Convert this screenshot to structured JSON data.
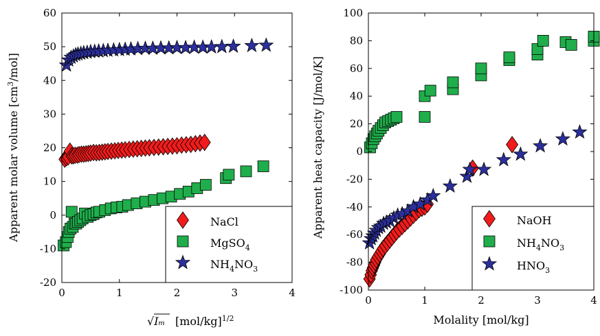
{
  "colors": {
    "red": "#f01c1c",
    "green": "#1fae4b",
    "blue": "#2b2f9b",
    "edge": "#000000"
  },
  "chart_data": [
    {
      "type": "scatter",
      "xlabel_math": "√Iₘ",
      "xlabel": "[mol/kg]",
      "xlabel_exp": "1/2",
      "ylabel_pre": "Apparent molar volume [cm",
      "ylabel_exp": "3",
      "ylabel_post": "/mol]",
      "xlim": [
        0,
        4
      ],
      "ylim": [
        -20,
        60
      ],
      "xticks": [
        "0",
        "1",
        "2",
        "3",
        "4"
      ],
      "yticks": [
        "-20",
        "-10",
        "0",
        "10",
        "20",
        "30",
        "40",
        "50",
        "60"
      ],
      "legend_position": "bottom-right",
      "series": [
        {
          "name": "NaCl",
          "legend_base": "NaCl",
          "legend_sub": "",
          "legend_tail": "",
          "marker": "diamond",
          "color": "red",
          "x": [
            0.05,
            0.08,
            0.11,
            0.14,
            0.17,
            0.2,
            0.23,
            0.27,
            0.3,
            0.34,
            0.38,
            0.42,
            0.46,
            0.5,
            0.55,
            0.6,
            0.65,
            0.7,
            0.75,
            0.8,
            0.86,
            0.92,
            0.98,
            1.04,
            1.1,
            1.17,
            1.24,
            1.31,
            1.38,
            1.45,
            1.52,
            1.6,
            1.68,
            1.76,
            1.84,
            1.92,
            2.0,
            2.08,
            2.16,
            2.24,
            2.32,
            2.4,
            2.48
          ],
          "y": [
            16.6,
            17.0,
            17.3,
            19.0,
            17.6,
            17.6,
            17.8,
            17.8,
            18.0,
            18.1,
            18.1,
            18.2,
            18.3,
            18.4,
            18.6,
            18.5,
            18.6,
            18.7,
            18.8,
            18.9,
            19.0,
            19.1,
            19.2,
            19.3,
            19.4,
            19.5,
            19.6,
            19.7,
            19.8,
            19.9,
            20.0,
            20.1,
            20.2,
            20.3,
            20.4,
            20.5,
            20.6,
            20.8,
            20.9,
            21.0,
            21.2,
            21.4,
            21.6
          ]
        },
        {
          "name": "MgSO4",
          "legend_base": "MgSO",
          "legend_sub": "4",
          "legend_tail": "",
          "marker": "square",
          "color": "green",
          "x": [
            0.03,
            0.07,
            0.1,
            0.12,
            0.15,
            0.17,
            0.19,
            0.22,
            0.25,
            0.28,
            0.32,
            0.36,
            0.4,
            0.45,
            0.5,
            0.55,
            0.6,
            0.65,
            0.75,
            0.85,
            0.95,
            1.05,
            1.15,
            1.3,
            1.45,
            1.6,
            1.75,
            1.9,
            2.05,
            2.2,
            2.35,
            2.5,
            2.85,
            2.9,
            3.2,
            3.5
          ],
          "y": [
            -9.0,
            -8.0,
            -6.5,
            -5.0,
            -4.0,
            1.0,
            -3.5,
            -2.5,
            -2.5,
            -2.0,
            -1.5,
            -1.0,
            0.5,
            -0.5,
            0.0,
            0.3,
            0.8,
            1.0,
            1.5,
            2.0,
            2.3,
            2.5,
            3.0,
            3.5,
            4.0,
            4.5,
            5.0,
            5.5,
            6.3,
            7.0,
            8.0,
            9.0,
            11.0,
            12.0,
            13.0,
            14.5
          ]
        },
        {
          "name": "NH4NO3",
          "legend_base": "NH",
          "legend_sub": "4",
          "legend_tail": "NO",
          "legend_sub2": "3",
          "marker": "star",
          "color": "blue",
          "x": [
            0.08,
            0.12,
            0.16,
            0.2,
            0.24,
            0.28,
            0.33,
            0.38,
            0.44,
            0.5,
            0.57,
            0.64,
            0.72,
            0.8,
            0.9,
            1.0,
            1.1,
            1.2,
            1.32,
            1.45,
            1.58,
            1.72,
            1.86,
            2.0,
            2.15,
            2.3,
            2.45,
            2.6,
            2.78,
            2.98,
            3.3,
            3.55
          ],
          "y": [
            44.5,
            46.0,
            46.8,
            47.2,
            47.6,
            47.8,
            48.0,
            48.2,
            48.3,
            48.5,
            48.6,
            48.7,
            48.8,
            48.9,
            49.0,
            49.1,
            49.2,
            49.3,
            49.4,
            49.5,
            49.5,
            49.6,
            49.6,
            49.7,
            49.7,
            49.8,
            49.8,
            49.9,
            50.0,
            50.1,
            50.3,
            50.4
          ]
        }
      ]
    },
    {
      "type": "scatter",
      "xlabel": "Molality [mol/kg]",
      "ylabel": "Apparent heat capacity [J/mol/K]",
      "xlim": [
        0,
        4
      ],
      "ylim": [
        -100,
        100
      ],
      "xticks": [
        "0",
        "1",
        "2",
        "3",
        "4"
      ],
      "yticks": [
        "-100",
        "-80",
        "-60",
        "-40",
        "-20",
        "0",
        "20",
        "40",
        "60",
        "80",
        "100"
      ],
      "legend_position": "bottom-right",
      "series": [
        {
          "name": "NaOH",
          "legend_base": "NaOH",
          "legend_sub": "",
          "legend_tail": "",
          "marker": "diamond",
          "color": "red",
          "x": [
            0.02,
            0.04,
            0.06,
            0.08,
            0.1,
            0.12,
            0.14,
            0.17,
            0.2,
            0.23,
            0.26,
            0.3,
            0.34,
            0.38,
            0.42,
            0.46,
            0.5,
            0.55,
            0.6,
            0.65,
            0.7,
            0.75,
            0.8,
            0.85,
            0.9,
            0.95,
            1.0,
            1.05,
            1.85,
            2.55
          ],
          "y": [
            -92,
            -89,
            -86,
            -84,
            -82,
            -80,
            -78,
            -76,
            -74,
            -72,
            -70,
            -68,
            -66,
            -64,
            -62,
            -60,
            -58,
            -56,
            -54,
            -52,
            -50,
            -48,
            -46,
            -44,
            -42,
            -41,
            -40,
            -38,
            -12,
            5
          ]
        },
        {
          "name": "NH4NO3",
          "legend_base": "NH",
          "legend_sub": "4",
          "legend_tail": "NO",
          "legend_sub2": "3",
          "marker": "square",
          "color": "green",
          "x": [
            0.03,
            0.06,
            0.09,
            0.12,
            0.15,
            0.18,
            0.22,
            0.26,
            0.3,
            0.35,
            0.4,
            0.45,
            0.5,
            1.0,
            1.0,
            1.1,
            1.5,
            1.5,
            2.0,
            2.0,
            2.5,
            2.5,
            3.0,
            3.0,
            3.1,
            3.5,
            3.6,
            4.0,
            4.0
          ],
          "y": [
            3,
            6,
            9,
            11,
            13,
            15,
            17,
            19,
            21,
            22,
            23,
            24,
            25,
            25,
            40,
            44,
            45,
            50,
            55,
            60,
            66,
            68,
            70,
            74,
            80,
            79,
            77,
            80,
            83
          ]
        },
        {
          "name": "HNO3",
          "legend_base": "HNO",
          "legend_sub": "3",
          "legend_tail": "",
          "marker": "star",
          "color": "blue",
          "x": [
            0.02,
            0.05,
            0.08,
            0.11,
            0.14,
            0.18,
            0.22,
            0.27,
            0.32,
            0.38,
            0.45,
            0.52,
            0.6,
            0.7,
            0.8,
            0.92,
            1.05,
            1.15,
            1.45,
            1.75,
            1.8,
            2.05,
            2.4,
            2.7,
            3.05,
            3.45,
            3.75
          ],
          "y": [
            -66,
            -63,
            -61,
            -59,
            -57,
            -55,
            -54,
            -52,
            -51,
            -50,
            -48,
            -46,
            -45,
            -43,
            -40,
            -38,
            -35,
            -32,
            -25,
            -18,
            -13,
            -13,
            -6,
            -2,
            4,
            9,
            14
          ]
        }
      ]
    }
  ]
}
